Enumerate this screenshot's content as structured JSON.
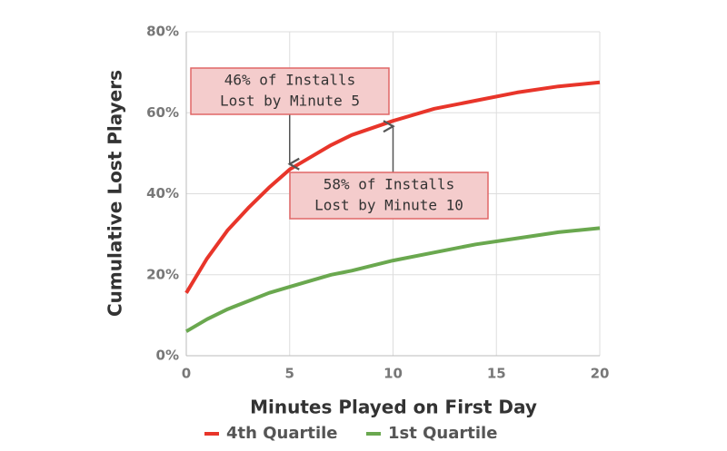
{
  "chart_data": {
    "type": "line",
    "x_label": "Minutes Played on First Day",
    "y_label": "Cumulative Lost Players",
    "x": [
      0,
      1,
      2,
      3,
      4,
      5,
      6,
      7,
      8,
      10,
      12,
      14,
      16,
      18,
      20
    ],
    "series": [
      {
        "name": "4th Quartile",
        "color": "#e8352a",
        "values": [
          15.5,
          24,
          31,
          36.5,
          41.5,
          46,
          49,
          52,
          54.5,
          58,
          61,
          63,
          65,
          66.5,
          67.5
        ]
      },
      {
        "name": "1st Quartile",
        "color": "#6aa84f",
        "values": [
          6,
          9,
          11.5,
          13.5,
          15.5,
          17,
          18.5,
          20,
          21,
          23.5,
          25.5,
          27.5,
          29,
          30.5,
          31.5
        ]
      }
    ],
    "xlim": [
      0,
      20
    ],
    "xticks": [
      0,
      5,
      10,
      15,
      20
    ],
    "ylim": [
      0,
      80
    ],
    "yticks": [
      {
        "value": 0,
        "label": "0%"
      },
      {
        "value": 20,
        "label": "20%"
      },
      {
        "value": 40,
        "label": "40%"
      },
      {
        "value": 60,
        "label": "60%"
      },
      {
        "value": 80,
        "label": "80%"
      }
    ],
    "grid": true,
    "legend": "bottom",
    "annotations": [
      {
        "lines": [
          "46% of Installs",
          "Lost by Minute 5"
        ],
        "x": 5,
        "y": 46
      },
      {
        "lines": [
          "58% of Installs",
          "Lost by Minute 10"
        ],
        "x": 10,
        "y": 58
      }
    ]
  }
}
